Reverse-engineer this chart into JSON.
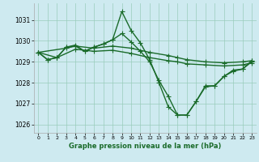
{
  "bg_color": "#ceeaf0",
  "grid_color": "#99ccbb",
  "line_color": "#1a6b2a",
  "title": "Graphe pression niveau de la mer (hPa)",
  "xlim": [
    -0.5,
    23.5
  ],
  "ylim": [
    1025.6,
    1031.8
  ],
  "yticks": [
    1026,
    1027,
    1028,
    1029,
    1030,
    1031
  ],
  "xticks": [
    0,
    1,
    2,
    3,
    4,
    5,
    6,
    7,
    8,
    9,
    10,
    11,
    12,
    13,
    14,
    15,
    16,
    17,
    18,
    19,
    20,
    21,
    22,
    23
  ],
  "series": [
    {
      "x": [
        0,
        1,
        2,
        3,
        4,
        5,
        6,
        7,
        8,
        9,
        10,
        11,
        12,
        13,
        14,
        15,
        16,
        17,
        18,
        19,
        20,
        21,
        22,
        23
      ],
      "y": [
        1029.45,
        1029.1,
        1029.2,
        1029.7,
        1029.75,
        1029.5,
        1029.7,
        1029.85,
        1030.05,
        1031.4,
        1030.5,
        1029.9,
        1029.1,
        1028.0,
        1026.85,
        1026.45,
        1026.45,
        1027.1,
        1027.85,
        1027.85,
        1028.3,
        1028.6,
        1028.65,
        1029.0
      ]
    },
    {
      "x": [
        0,
        3,
        4,
        6,
        8,
        10,
        12,
        14,
        15,
        16,
        18,
        20,
        22,
        23
      ],
      "y": [
        1029.45,
        1029.65,
        1029.75,
        1029.65,
        1029.75,
        1029.65,
        1029.45,
        1029.3,
        1029.2,
        1029.1,
        1029.0,
        1028.95,
        1029.0,
        1029.05
      ]
    },
    {
      "x": [
        0,
        2,
        4,
        6,
        8,
        10,
        12,
        14,
        15,
        16,
        18,
        20,
        22,
        23
      ],
      "y": [
        1029.45,
        1029.2,
        1029.6,
        1029.5,
        1029.55,
        1029.4,
        1029.2,
        1029.05,
        1029.0,
        1028.9,
        1028.85,
        1028.8,
        1028.85,
        1028.95
      ]
    },
    {
      "x": [
        0,
        1,
        2,
        3,
        4,
        5,
        6,
        7,
        8,
        9,
        10,
        11,
        12,
        13,
        14,
        15,
        16,
        17,
        18,
        19,
        20,
        21,
        22,
        23
      ],
      "y": [
        1029.45,
        1029.1,
        1029.2,
        1029.7,
        1029.8,
        1029.5,
        1029.7,
        1029.85,
        1030.05,
        1030.35,
        1029.95,
        1029.5,
        1029.0,
        1028.1,
        1027.35,
        1026.45,
        1026.45,
        1027.1,
        1027.8,
        1027.85,
        1028.3,
        1028.55,
        1028.65,
        1029.05
      ]
    }
  ],
  "marker": "+",
  "markersize": 4,
  "linewidth": 1.0
}
